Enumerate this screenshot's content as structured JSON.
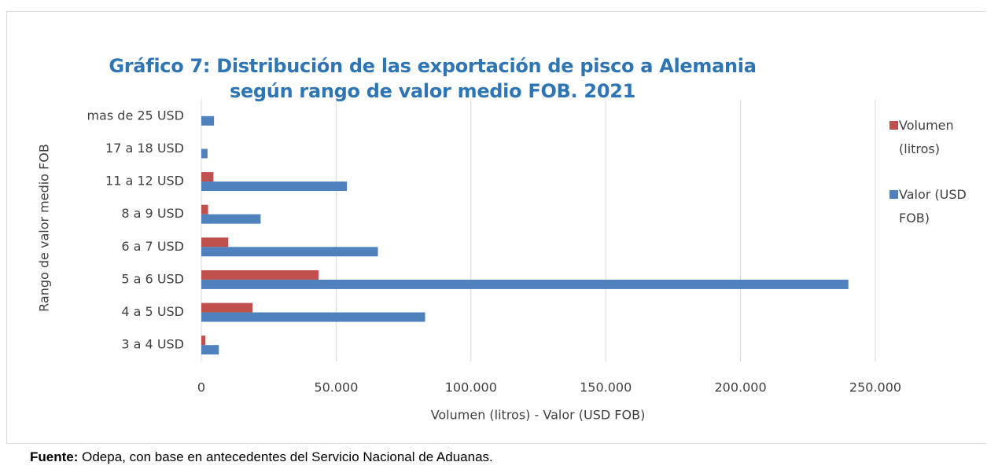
{
  "chart_data": {
    "type": "hbar",
    "title": "Gráfico 7: Distribución de las exportación de pisco a Alemania según rango de valor medio FOB. 2021",
    "x_label": "Volumen (litros) - Valor (USD FOB)",
    "y_label": "Rango de valor medio FOB",
    "categories": [
      "3 a 4 USD",
      "4 a 5 USD",
      "5 a 6 USD",
      "6 a 7 USD",
      "8 a 9 USD",
      "11 a 12 USD",
      "17 a 18 USD",
      "mas de 25 USD"
    ],
    "series": [
      {
        "name": "Volumen (litros)",
        "color": "#c0504d",
        "values": [
          1500,
          19000,
          43500,
          10000,
          2500,
          4500,
          0,
          0
        ]
      },
      {
        "name": "Valor (USD FOB)",
        "color": "#4f81bd",
        "values": [
          6500,
          83000,
          240000,
          65500,
          22000,
          54000,
          2300,
          4700
        ]
      }
    ],
    "xlim": [
      0,
      250000
    ],
    "xticks": [
      0,
      {
        "value": 50000,
        "label": "50.000"
      },
      {
        "value": 100000,
        "label": "100.000"
      },
      {
        "value": 150000,
        "label": "150.000"
      },
      {
        "value": 200000,
        "label": "200.000"
      },
      {
        "value": 250000,
        "label": "250.000"
      }
    ],
    "grid": true,
    "legend": "right"
  },
  "footer": {
    "label": "Fuente:",
    "text": "Odepa, con base en antecedentes del Servicio Nacional de Aduanas."
  }
}
